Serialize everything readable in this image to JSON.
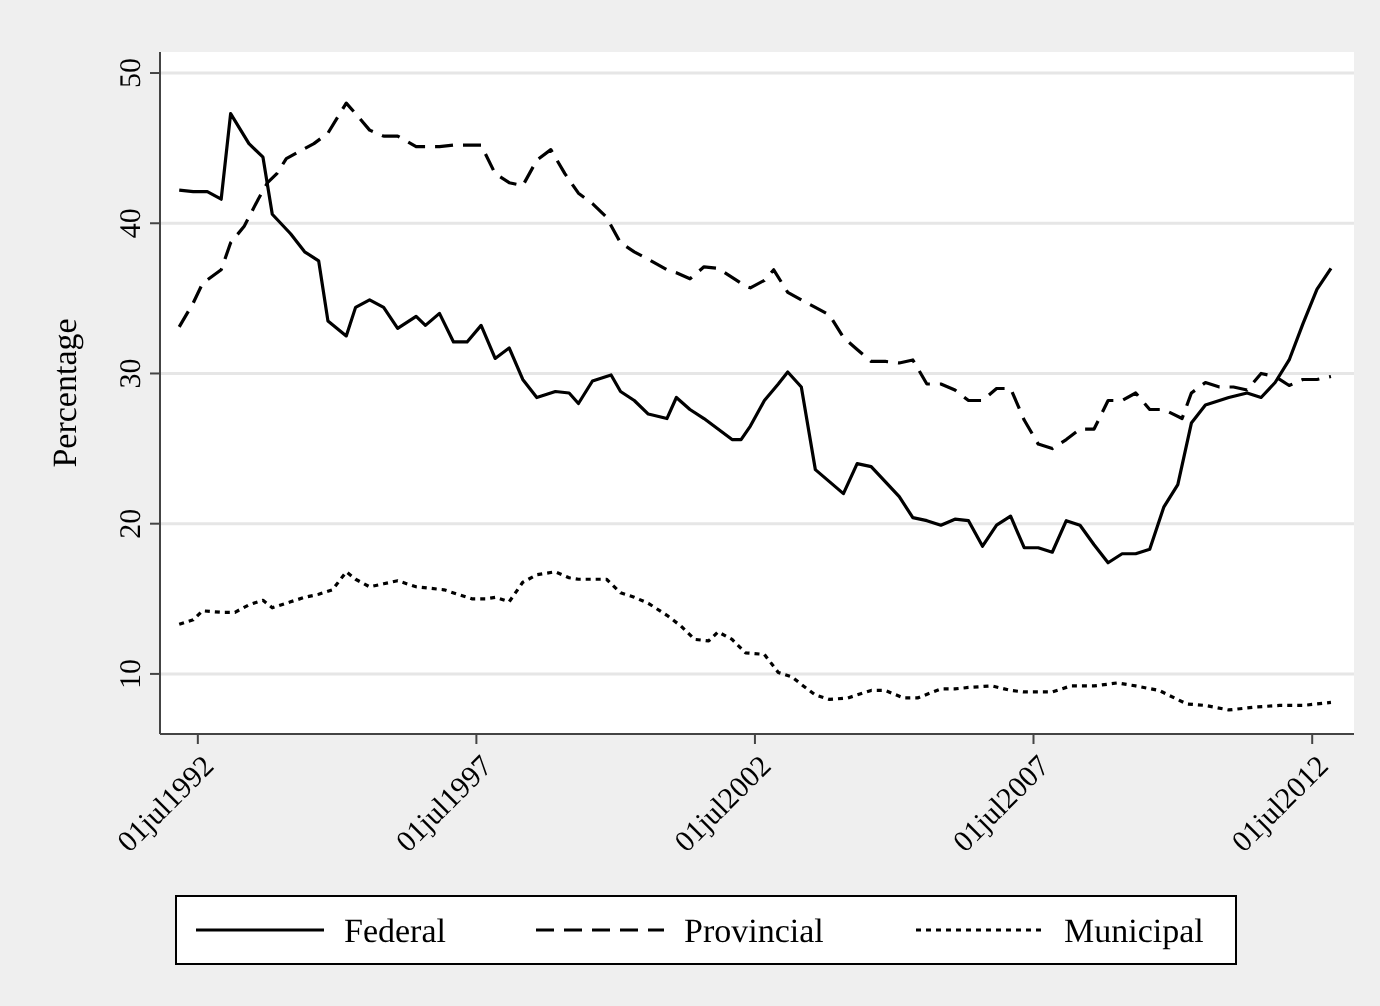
{
  "chart_data": {
    "type": "line",
    "ylabel": "Percentage",
    "xlim": [
      "1991-10-27",
      "2013-04-01"
    ],
    "ylim": [
      6,
      51.4
    ],
    "xticks": [
      {
        "value": "1992-07-01",
        "label": "01jul1992"
      },
      {
        "value": "1997-07-01",
        "label": "01jul1997"
      },
      {
        "value": "2002-07-01",
        "label": "01jul2002"
      },
      {
        "value": "2007-07-01",
        "label": "01jul2007"
      },
      {
        "value": "2012-07-01",
        "label": "01jul2012"
      }
    ],
    "yticks": [
      10,
      20,
      30,
      40,
      50
    ],
    "grid": "y",
    "legend": "bottom",
    "marker": "none",
    "series": [
      {
        "name": "Federal",
        "color": "#000000",
        "line_style": "solid",
        "x": [
          "1992-03",
          "1992-06",
          "1992-09",
          "1992-12",
          "1993-02",
          "1993-06",
          "1993-09",
          "1993-11",
          "1994-03",
          "1994-06",
          "1994-09",
          "1994-11",
          "1995-03",
          "1995-05",
          "1995-08",
          "1995-11",
          "1996-02",
          "1996-06",
          "1996-08",
          "1996-11",
          "1997-02",
          "1997-05",
          "1997-08",
          "1997-11",
          "1998-02",
          "1998-05",
          "1998-08",
          "1998-12",
          "1999-03",
          "1999-05",
          "1999-08",
          "1999-12",
          "2000-02",
          "2000-05",
          "2000-08",
          "2000-12",
          "2001-02",
          "2001-05",
          "2001-08",
          "2001-11",
          "2002-02",
          "2002-04",
          "2002-06",
          "2002-09",
          "2002-12",
          "2003-02",
          "2003-05",
          "2003-08",
          "2003-11",
          "2004-02",
          "2004-05",
          "2004-08",
          "2004-11",
          "2005-02",
          "2005-05",
          "2005-08",
          "2005-11",
          "2006-02",
          "2006-05",
          "2006-08",
          "2006-11",
          "2007-02",
          "2007-05",
          "2007-08",
          "2007-11",
          "2008-02",
          "2008-05",
          "2008-08",
          "2008-11",
          "2009-02",
          "2009-05",
          "2009-08",
          "2009-11",
          "2010-02",
          "2010-05",
          "2010-08",
          "2010-11",
          "2011-01",
          "2011-05",
          "2011-08",
          "2011-11",
          "2012-02",
          "2012-05",
          "2012-08",
          "2012-11"
        ],
        "values": [
          42.2,
          42.1,
          42.1,
          41.6,
          47.3,
          45.3,
          44.4,
          40.6,
          39.3,
          38.1,
          37.5,
          33.5,
          32.5,
          34.4,
          34.9,
          34.4,
          33,
          33.8,
          33.2,
          34,
          32.1,
          32.1,
          33.2,
          31,
          31.7,
          29.6,
          28.4,
          28.8,
          28.7,
          28,
          29.5,
          29.9,
          28.8,
          28.2,
          27.3,
          27,
          28.4,
          27.6,
          27,
          26.3,
          25.6,
          25.6,
          26.5,
          28.2,
          29.3,
          30.1,
          29.1,
          23.6,
          22.8,
          22,
          24,
          23.8,
          22.8,
          21.8,
          20.4,
          20.2,
          19.9,
          20.3,
          20.2,
          18.5,
          19.9,
          20.5,
          18.4,
          18.4,
          18.1,
          20.2,
          19.9,
          18.6,
          17.4,
          18,
          18,
          18.3,
          21.1,
          22.6,
          26.7,
          27.9,
          28.2,
          28.4,
          28.7,
          28.4,
          29.4,
          30.9,
          33.3,
          35.6,
          37
        ]
      },
      {
        "name": "Provincial",
        "color": "#000000",
        "line_style": "dashed",
        "x": [
          "1992-03",
          "1992-06",
          "1992-08",
          "1992-12",
          "1993-02",
          "1993-05",
          "1993-08",
          "1993-10",
          "1993-12",
          "1994-02",
          "1994-05",
          "1994-08",
          "1994-11",
          "1995-03",
          "1995-05",
          "1995-08",
          "1995-11",
          "1996-02",
          "1996-06",
          "1996-11",
          "1997-02",
          "1997-08",
          "1997-11",
          "1998-02",
          "1998-05",
          "1998-08",
          "1998-11",
          "1999-02",
          "1999-05",
          "1999-08",
          "1999-11",
          "2000-02",
          "2000-05",
          "2000-08",
          "2000-12",
          "2001-02",
          "2001-05",
          "2001-08",
          "2001-11",
          "2002-02",
          "2002-05",
          "2002-06",
          "2002-09",
          "2002-11",
          "2003-02",
          "2003-05",
          "2003-08",
          "2003-11",
          "2004-02",
          "2004-05",
          "2004-08",
          "2004-11",
          "2005-02",
          "2005-05",
          "2005-08",
          "2005-11",
          "2006-02",
          "2006-05",
          "2006-08",
          "2006-11",
          "2007-02",
          "2007-05",
          "2007-08",
          "2007-11",
          "2008-02",
          "2008-05",
          "2008-08",
          "2008-11",
          "2009-02",
          "2009-05",
          "2009-08",
          "2009-11",
          "2010-03",
          "2010-05",
          "2010-08",
          "2010-11",
          "2011-02",
          "2011-05",
          "2011-08",
          "2011-11",
          "2012-02",
          "2012-05",
          "2012-08",
          "2012-11"
        ],
        "values": [
          33.1,
          34.7,
          36,
          36.9,
          38.7,
          39.8,
          41.6,
          42.7,
          43.3,
          44.3,
          44.8,
          45.3,
          46,
          48,
          47.3,
          46.2,
          45.8,
          45.8,
          45.1,
          45.1,
          45.2,
          45.2,
          43.3,
          42.7,
          42.5,
          44.2,
          44.9,
          43.3,
          42,
          41.3,
          40.4,
          38.7,
          38.1,
          37.6,
          36.9,
          36.7,
          36.3,
          37.1,
          37,
          36.4,
          35.8,
          35.7,
          36.2,
          36.9,
          35.4,
          34.9,
          34.4,
          33.9,
          32.4,
          31.6,
          30.8,
          30.8,
          30.7,
          30.9,
          29.3,
          29.3,
          28.9,
          28.2,
          28.2,
          29,
          29,
          26.9,
          25.3,
          25,
          25.6,
          26.3,
          26.3,
          28.2,
          28.2,
          28.7,
          27.6,
          27.6,
          27,
          28.7,
          29.4,
          29.1,
          29.1,
          28.9,
          30,
          29.8,
          29.2,
          29.6,
          29.6,
          29.8
        ]
      },
      {
        "name": "Municipal",
        "color": "#000000",
        "line_style": "dotted",
        "x": [
          "1992-03",
          "1992-06",
          "1992-08",
          "1992-12",
          "1993-03",
          "1993-06",
          "1993-09",
          "1993-11",
          "1994-03",
          "1994-06",
          "1994-09",
          "1994-12",
          "1995-03",
          "1995-05",
          "1995-08",
          "1995-11",
          "1996-02",
          "1996-06",
          "1996-09",
          "1996-12",
          "1997-03",
          "1997-06",
          "1997-09",
          "1997-11",
          "1998-02",
          "1998-05",
          "1998-08",
          "1998-12",
          "1999-03",
          "1999-05",
          "1999-08",
          "1999-11",
          "2000-02",
          "2000-05",
          "2000-08",
          "2000-12",
          "2001-03",
          "2001-06",
          "2001-09",
          "2001-11",
          "2002-02",
          "2002-05",
          "2002-09",
          "2002-12",
          "2003-03",
          "2003-05",
          "2003-08",
          "2003-11",
          "2004-03",
          "2004-08",
          "2004-11",
          "2005-03",
          "2005-06",
          "2005-11",
          "2006-02",
          "2006-05",
          "2006-10",
          "2007-02",
          "2007-05",
          "2007-11",
          "2008-03",
          "2008-08",
          "2009-01",
          "2009-05",
          "2009-10",
          "2010-04",
          "2010-08",
          "2011-01",
          "2011-07",
          "2011-12",
          "2012-05",
          "2012-11"
        ],
        "values": [
          13.3,
          13.6,
          14.2,
          14.1,
          14.1,
          14.6,
          14.9,
          14.4,
          14.8,
          15.1,
          15.3,
          15.6,
          16.8,
          16.3,
          15.8,
          16,
          16.2,
          15.8,
          15.7,
          15.6,
          15.3,
          15,
          15,
          15.1,
          14.8,
          16.1,
          16.6,
          16.8,
          16.4,
          16.3,
          16.3,
          16.3,
          15.4,
          15.1,
          14.7,
          13.9,
          13.2,
          12.3,
          12.2,
          12.8,
          12.3,
          11.4,
          11.3,
          10.1,
          9.8,
          9.3,
          8.6,
          8.3,
          8.4,
          8.9,
          8.9,
          8.4,
          8.4,
          9,
          9,
          9.1,
          9.2,
          8.9,
          8.8,
          8.8,
          9.2,
          9.2,
          9.4,
          9.2,
          8.9,
          8,
          7.9,
          7.6,
          7.8,
          7.9,
          7.9,
          8.1
        ]
      }
    ]
  }
}
